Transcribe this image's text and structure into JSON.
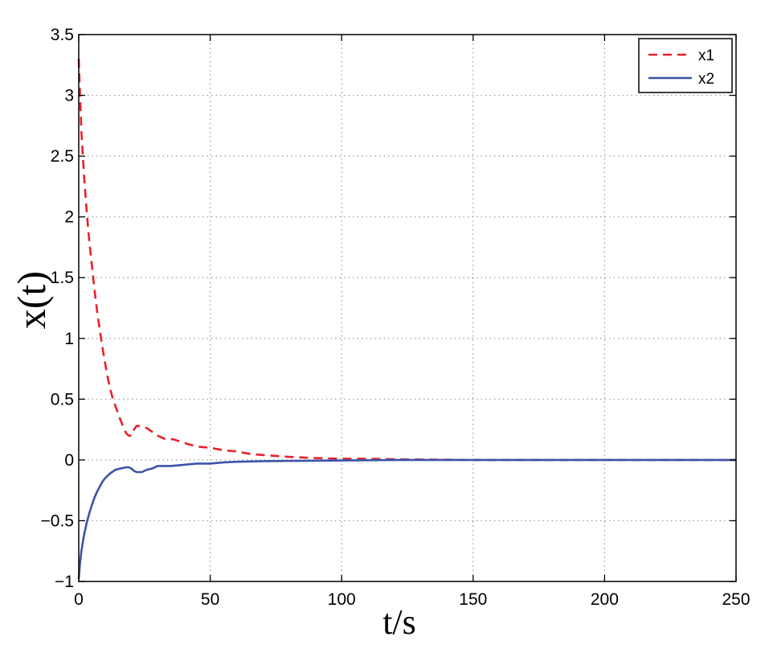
{
  "chart_data": {
    "type": "line",
    "xlabel": "t/s",
    "ylabel": "x(t)",
    "xlim": [
      0,
      250
    ],
    "ylim": [
      -1,
      3.5
    ],
    "xticks": [
      0,
      50,
      100,
      150,
      200,
      250
    ],
    "xtick_labels": [
      "0",
      "50",
      "100",
      "150",
      "200",
      "250"
    ],
    "yticks": [
      -1,
      -0.5,
      0,
      0.5,
      1,
      1.5,
      2,
      2.5,
      3,
      3.5
    ],
    "ytick_labels": [
      "−1",
      "−0.5",
      "0",
      "0.5",
      "1",
      "1.5",
      "2",
      "2.5",
      "3",
      "3.5"
    ],
    "grid": true,
    "legend_position": "top-right",
    "series": [
      {
        "name": "x1",
        "color": "#e8202a",
        "style": "dashed",
        "points": [
          [
            0,
            3.3
          ],
          [
            0.5,
            3.0
          ],
          [
            1,
            2.7
          ],
          [
            2,
            2.35
          ],
          [
            3,
            2.05
          ],
          [
            4,
            1.8
          ],
          [
            5,
            1.6
          ],
          [
            6,
            1.4
          ],
          [
            7,
            1.22
          ],
          [
            8,
            1.07
          ],
          [
            9,
            0.93
          ],
          [
            10,
            0.8
          ],
          [
            11,
            0.68
          ],
          [
            12,
            0.58
          ],
          [
            13,
            0.5
          ],
          [
            14,
            0.44
          ],
          [
            15,
            0.38
          ],
          [
            16,
            0.32
          ],
          [
            17,
            0.27
          ],
          [
            18,
            0.22
          ],
          [
            19,
            0.2
          ],
          [
            20,
            0.2
          ],
          [
            21,
            0.25
          ],
          [
            22,
            0.28
          ],
          [
            24,
            0.28
          ],
          [
            26,
            0.26
          ],
          [
            28,
            0.23
          ],
          [
            30,
            0.2
          ],
          [
            33,
            0.17
          ],
          [
            36,
            0.17
          ],
          [
            40,
            0.14
          ],
          [
            45,
            0.11
          ],
          [
            50,
            0.1
          ],
          [
            55,
            0.08
          ],
          [
            60,
            0.07
          ],
          [
            65,
            0.05
          ],
          [
            70,
            0.04
          ],
          [
            80,
            0.025
          ],
          [
            90,
            0.015
          ],
          [
            100,
            0.01
          ],
          [
            110,
            0.01
          ],
          [
            120,
            0.005
          ],
          [
            150,
            0.0
          ],
          [
            200,
            0.0
          ],
          [
            250,
            0.0
          ]
        ]
      },
      {
        "name": "x2",
        "color": "#3a54a8",
        "style": "solid",
        "points": [
          [
            0,
            -0.98
          ],
          [
            0.5,
            -0.85
          ],
          [
            1,
            -0.75
          ],
          [
            2,
            -0.62
          ],
          [
            3,
            -0.52
          ],
          [
            4,
            -0.44
          ],
          [
            5,
            -0.37
          ],
          [
            6,
            -0.31
          ],
          [
            7,
            -0.26
          ],
          [
            8,
            -0.22
          ],
          [
            9,
            -0.18
          ],
          [
            10,
            -0.15
          ],
          [
            12,
            -0.11
          ],
          [
            14,
            -0.08
          ],
          [
            16,
            -0.07
          ],
          [
            18,
            -0.06
          ],
          [
            19,
            -0.06
          ],
          [
            20,
            -0.07
          ],
          [
            21,
            -0.09
          ],
          [
            22,
            -0.1
          ],
          [
            24,
            -0.1
          ],
          [
            26,
            -0.08
          ],
          [
            28,
            -0.07
          ],
          [
            30,
            -0.05
          ],
          [
            35,
            -0.05
          ],
          [
            40,
            -0.04
          ],
          [
            45,
            -0.03
          ],
          [
            50,
            -0.03
          ],
          [
            55,
            -0.02
          ],
          [
            60,
            -0.015
          ],
          [
            70,
            -0.01
          ],
          [
            80,
            -0.008
          ],
          [
            100,
            -0.005
          ],
          [
            120,
            0.0
          ],
          [
            150,
            0.0
          ],
          [
            200,
            0.0
          ],
          [
            250,
            0.0
          ]
        ]
      }
    ]
  }
}
